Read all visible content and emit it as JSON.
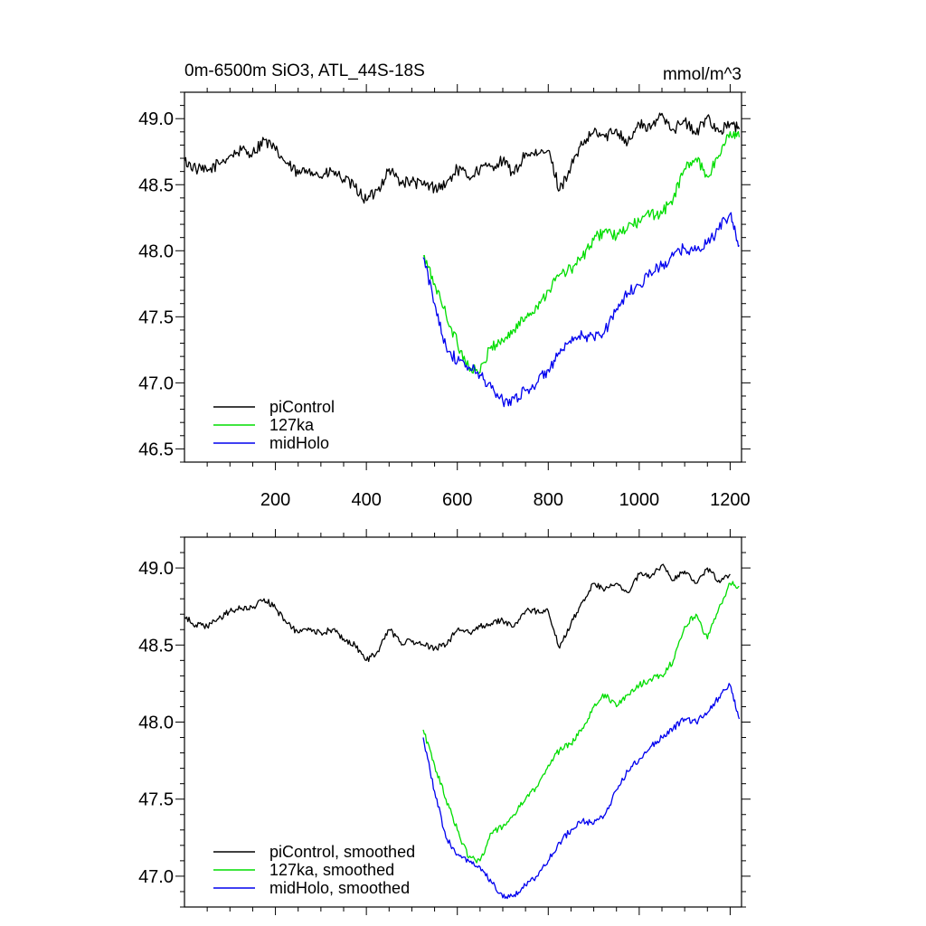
{
  "chart_data": [
    {
      "type": "line",
      "title": "0m-6500m SiO3, ATL_44S-18S",
      "units": "mmol/m^3",
      "xlabel": "",
      "ylabel": "",
      "xlim": [
        0,
        1225
      ],
      "ylim": [
        46.4,
        49.2
      ],
      "x_ticks": [
        200,
        400,
        600,
        800,
        1000,
        1200
      ],
      "y_ticks": [
        46.5,
        47.0,
        47.5,
        48.0,
        48.5,
        49.0
      ],
      "y_tick_labels": [
        "46.5",
        "47.0",
        "47.5",
        "48.0",
        "48.5",
        "49.0"
      ],
      "grid": false,
      "legend_position": "bottom-left",
      "series": [
        {
          "name": "piControl",
          "color": "#000000",
          "x": [
            0,
            25,
            50,
            75,
            100,
            125,
            150,
            175,
            200,
            225,
            250,
            275,
            300,
            325,
            350,
            375,
            400,
            425,
            450,
            475,
            500,
            525,
            550,
            575,
            600,
            625,
            650,
            675,
            700,
            725,
            750,
            775,
            800,
            825,
            850,
            875,
            900,
            925,
            950,
            975,
            1000,
            1025,
            1050,
            1075,
            1100,
            1125,
            1150,
            1175,
            1200,
            1220
          ],
          "values": [
            48.68,
            48.62,
            48.6,
            48.66,
            48.72,
            48.76,
            48.74,
            48.84,
            48.76,
            48.66,
            48.58,
            48.62,
            48.56,
            48.6,
            48.54,
            48.48,
            48.38,
            48.46,
            48.62,
            48.52,
            48.52,
            48.5,
            48.48,
            48.5,
            48.62,
            48.56,
            48.62,
            48.64,
            48.68,
            48.58,
            48.74,
            48.72,
            48.76,
            48.46,
            48.64,
            48.8,
            48.9,
            48.86,
            48.92,
            48.82,
            48.96,
            48.92,
            49.04,
            48.92,
            48.98,
            48.88,
            49.02,
            48.9,
            48.96,
            48.92
          ]
        },
        {
          "name": "127ka",
          "color": "#00dd00",
          "x": [
            525,
            550,
            575,
            600,
            625,
            650,
            675,
            700,
            725,
            750,
            775,
            800,
            825,
            850,
            875,
            900,
            925,
            950,
            975,
            1000,
            1025,
            1050,
            1075,
            1100,
            1125,
            1150,
            1175,
            1200,
            1220
          ],
          "values": [
            47.96,
            47.75,
            47.52,
            47.3,
            47.12,
            47.08,
            47.28,
            47.32,
            47.4,
            47.5,
            47.58,
            47.7,
            47.82,
            47.86,
            47.95,
            48.08,
            48.16,
            48.1,
            48.18,
            48.22,
            48.28,
            48.28,
            48.4,
            48.62,
            48.7,
            48.56,
            48.72,
            48.9,
            48.86
          ]
        },
        {
          "name": "midHolo",
          "color": "#0000ee",
          "x": [
            525,
            550,
            575,
            600,
            625,
            650,
            675,
            700,
            725,
            750,
            775,
            800,
            825,
            850,
            875,
            900,
            925,
            950,
            975,
            1000,
            1025,
            1050,
            1075,
            1100,
            1125,
            1150,
            1175,
            1200,
            1220
          ],
          "values": [
            47.95,
            47.6,
            47.28,
            47.16,
            47.12,
            47.06,
            46.96,
            46.86,
            46.88,
            46.94,
            47.0,
            47.1,
            47.22,
            47.3,
            47.36,
            47.34,
            47.4,
            47.56,
            47.68,
            47.74,
            47.84,
            47.88,
            47.96,
            48.02,
            48.0,
            48.06,
            48.16,
            48.28,
            48.04
          ]
        }
      ]
    },
    {
      "type": "line",
      "title": "",
      "xlabel": "",
      "ylabel": "",
      "xlim": [
        0,
        1225
      ],
      "ylim": [
        46.8,
        49.2
      ],
      "x_ticks": [
        200,
        400,
        600,
        800,
        1000,
        1200
      ],
      "y_ticks": [
        47.0,
        47.5,
        48.0,
        48.5,
        49.0
      ],
      "y_tick_labels": [
        "47.0",
        "47.5",
        "48.0",
        "48.5",
        "49.0"
      ],
      "grid": false,
      "legend_position": "bottom-left",
      "series": [
        {
          "name": "piControl, smoothed",
          "color": "#000000",
          "x": [
            0,
            25,
            50,
            75,
            100,
            125,
            150,
            175,
            200,
            225,
            250,
            275,
            300,
            325,
            350,
            375,
            400,
            425,
            450,
            475,
            500,
            525,
            550,
            575,
            600,
            625,
            650,
            675,
            700,
            725,
            750,
            775,
            800,
            825,
            850,
            875,
            900,
            925,
            950,
            975,
            1000,
            1025,
            1050,
            1075,
            1100,
            1125,
            1150,
            1175,
            1200
          ],
          "values": [
            48.68,
            48.63,
            48.62,
            48.67,
            48.72,
            48.74,
            48.74,
            48.8,
            48.74,
            48.64,
            48.58,
            48.6,
            48.58,
            48.6,
            48.54,
            48.5,
            48.4,
            48.46,
            48.6,
            48.52,
            48.52,
            48.5,
            48.48,
            48.5,
            48.6,
            48.58,
            48.62,
            48.64,
            48.66,
            48.62,
            48.72,
            48.72,
            48.72,
            48.48,
            48.64,
            48.78,
            48.9,
            48.86,
            48.9,
            48.84,
            48.96,
            48.94,
            49.02,
            48.92,
            48.98,
            48.9,
            49.0,
            48.92,
            48.96
          ]
        },
        {
          "name": "127ka, smoothed",
          "color": "#00dd00",
          "x": [
            525,
            550,
            575,
            600,
            625,
            650,
            675,
            700,
            725,
            750,
            775,
            800,
            825,
            850,
            875,
            900,
            925,
            950,
            975,
            1000,
            1025,
            1050,
            1075,
            1100,
            1125,
            1150,
            1175,
            1200,
            1220
          ],
          "values": [
            47.95,
            47.72,
            47.5,
            47.3,
            47.12,
            47.1,
            47.28,
            47.32,
            47.4,
            47.5,
            47.58,
            47.72,
            47.82,
            47.86,
            47.96,
            48.1,
            48.18,
            48.1,
            48.18,
            48.24,
            48.28,
            48.3,
            48.4,
            48.62,
            48.7,
            48.54,
            48.74,
            48.9,
            48.88
          ]
        },
        {
          "name": "midHolo, smoothed",
          "color": "#0000ee",
          "x": [
            525,
            550,
            575,
            600,
            625,
            650,
            675,
            700,
            725,
            750,
            775,
            800,
            825,
            850,
            875,
            900,
            925,
            950,
            975,
            1000,
            1025,
            1050,
            1075,
            1100,
            1125,
            1150,
            1175,
            1200,
            1220
          ],
          "values": [
            47.9,
            47.55,
            47.25,
            47.14,
            47.1,
            47.06,
            46.96,
            46.86,
            46.88,
            46.94,
            47.0,
            47.1,
            47.22,
            47.3,
            47.36,
            47.34,
            47.4,
            47.56,
            47.68,
            47.76,
            47.84,
            47.9,
            47.96,
            48.02,
            48.0,
            48.06,
            48.16,
            48.24,
            48.02
          ]
        }
      ]
    }
  ]
}
